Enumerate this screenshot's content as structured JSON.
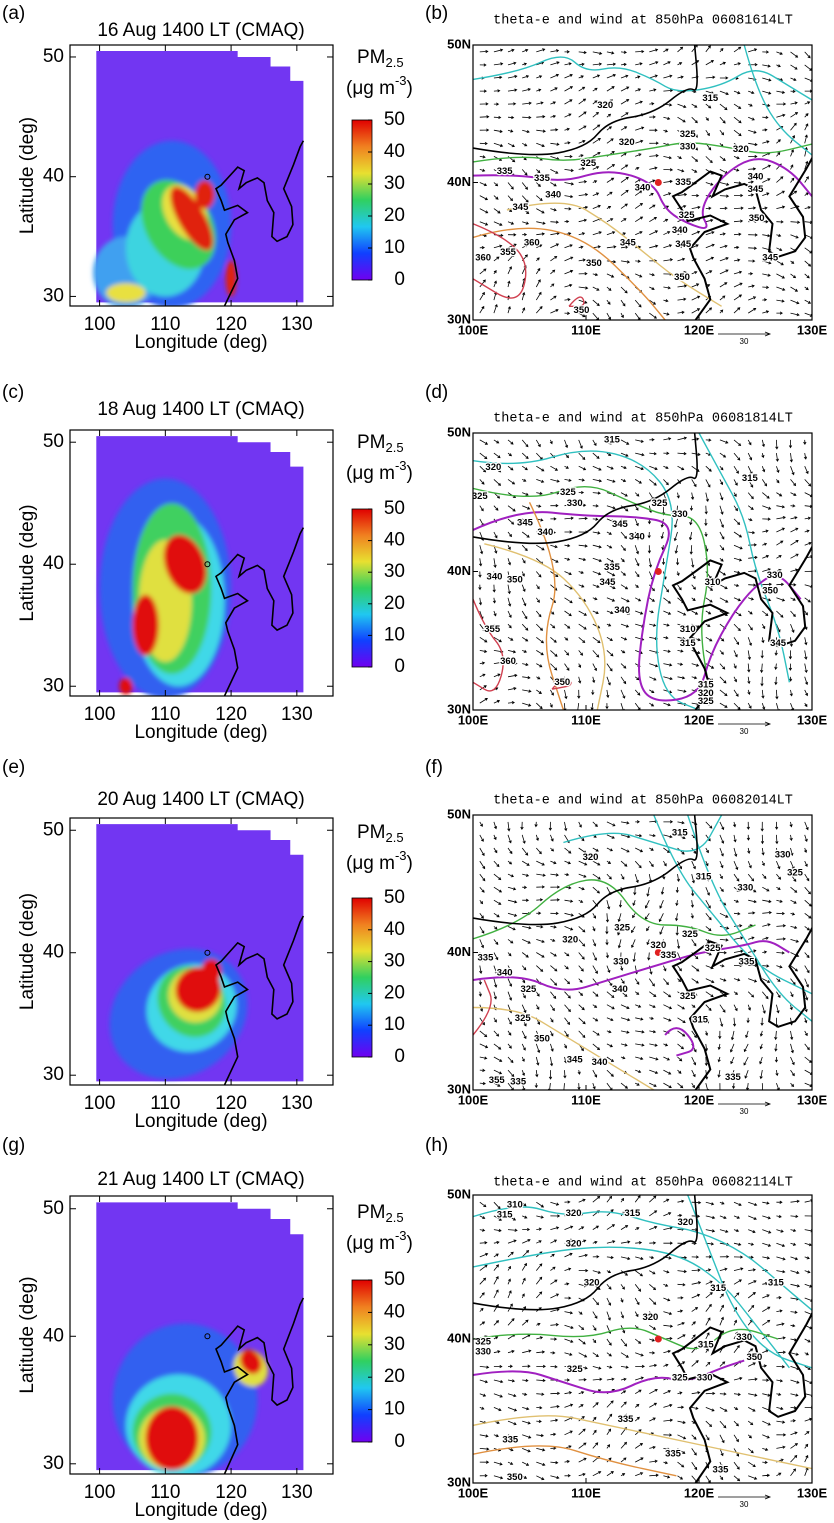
{
  "panels": [
    {
      "label": "(a)",
      "title": "16 Aug 1400 LT (CMAQ)",
      "xlabel": "Longitude (deg)",
      "ylabel": "Latitude (deg)",
      "xlim": [
        95.5,
        135.5
      ],
      "ylim": [
        29.2,
        51
      ],
      "xticks": [
        100,
        110,
        120,
        130
      ],
      "yticks": [
        30,
        40,
        50
      ],
      "colorbar": {
        "label": "PM",
        "label_sub": "2.5",
        "unit": "(μg m",
        "unit_sup": "-3",
        "unit_end": ")",
        "lim": [
          0,
          50
        ],
        "ticks": [
          0,
          10,
          20,
          30,
          40,
          50
        ],
        "colormap": [
          "#7000f0",
          "#1040ff",
          "#20c8f0",
          "#30d060",
          "#e8e030",
          "#f08020",
          "#e00000"
        ]
      }
    },
    {
      "label": "(b)",
      "title": "theta-e and wind at 850hPa 06081614LT",
      "xlim": [
        100,
        130
      ],
      "ylim": [
        30,
        50
      ],
      "xticks": [
        {
          "value": 100,
          "label": "100E"
        },
        {
          "value": 110,
          "label": "110E"
        },
        {
          "value": 120,
          "label": "120E"
        },
        {
          "value": 130,
          "label": "130E"
        }
      ],
      "yticks": [
        {
          "value": 30,
          "label": "30N"
        },
        {
          "value": 40,
          "label": "40N"
        },
        {
          "value": 50,
          "label": "50N"
        }
      ],
      "reference_vector": "30",
      "contour_labels": [
        "320",
        "315",
        "320",
        "325",
        "330",
        "320",
        "325",
        "335",
        "335",
        "340",
        "340",
        "335",
        "340",
        "345",
        "345",
        "325",
        "340",
        "345",
        "345",
        "350",
        "345",
        "360",
        "360",
        "355",
        "350",
        "350",
        "350"
      ]
    },
    {
      "label": "(c)",
      "title": "18 Aug 1400 LT (CMAQ)",
      "xlabel": "Longitude (deg)",
      "ylabel": "Latitude (deg)",
      "xlim": [
        95.5,
        135.5
      ],
      "ylim": [
        29.2,
        51
      ],
      "xticks": [
        100,
        110,
        120,
        130
      ],
      "yticks": [
        30,
        40,
        50
      ],
      "colorbar": {
        "label": "PM",
        "label_sub": "2.5",
        "unit": "(μg m",
        "unit_sup": "-3",
        "unit_end": ")",
        "lim": [
          0,
          50
        ],
        "ticks": [
          0,
          10,
          20,
          30,
          40,
          50
        ],
        "colormap": [
          "#7000f0",
          "#1040ff",
          "#20c8f0",
          "#30d060",
          "#e8e030",
          "#f08020",
          "#e00000"
        ]
      }
    },
    {
      "label": "(d)",
      "title": "theta-e and wind at 850hPa 06081814LT",
      "xlim": [
        100,
        130
      ],
      "ylim": [
        30,
        50
      ],
      "xticks": [
        {
          "value": 100,
          "label": "100E"
        },
        {
          "value": 110,
          "label": "110E"
        },
        {
          "value": 120,
          "label": "120E"
        },
        {
          "value": 130,
          "label": "130E"
        }
      ],
      "yticks": [
        {
          "value": 30,
          "label": "30N"
        },
        {
          "value": 40,
          "label": "40N"
        },
        {
          "value": 50,
          "label": "50N"
        }
      ],
      "reference_vector": "30",
      "contour_labels": [
        "315",
        "320",
        "315",
        "325",
        "325",
        "325",
        "330",
        "330",
        "345",
        "340",
        "345",
        "340",
        "335",
        "340",
        "350",
        "345",
        "310",
        "340",
        "330",
        "350",
        "310",
        "315",
        "355",
        "345",
        "360",
        "350",
        "315",
        "320",
        "325"
      ]
    },
    {
      "label": "(e)",
      "title": "20 Aug 1400 LT (CMAQ)",
      "xlabel": "Longitude (deg)",
      "ylabel": "Latitude (deg)",
      "xlim": [
        95.5,
        135.5
      ],
      "ylim": [
        29.2,
        51
      ],
      "xticks": [
        100,
        110,
        120,
        130
      ],
      "yticks": [
        30,
        40,
        50
      ],
      "colorbar": {
        "label": "PM",
        "label_sub": "2.5",
        "unit": "(μg m",
        "unit_sup": "-3",
        "unit_end": ")",
        "lim": [
          0,
          50
        ],
        "ticks": [
          0,
          10,
          20,
          30,
          40,
          50
        ],
        "colormap": [
          "#7000f0",
          "#1040ff",
          "#20c8f0",
          "#30d060",
          "#e8e030",
          "#f08020",
          "#e00000"
        ]
      }
    },
    {
      "label": "(f)",
      "title": "theta-e and wind at 850hPa 06082014LT",
      "xlim": [
        100,
        130
      ],
      "ylim": [
        30,
        50
      ],
      "xticks": [
        {
          "value": 100,
          "label": "100E"
        },
        {
          "value": 110,
          "label": "110E"
        },
        {
          "value": 120,
          "label": "120E"
        },
        {
          "value": 130,
          "label": "130E"
        }
      ],
      "yticks": [
        {
          "value": 30,
          "label": "30N"
        },
        {
          "value": 40,
          "label": "40N"
        },
        {
          "value": 50,
          "label": "50N"
        }
      ],
      "reference_vector": "30",
      "contour_labels": [
        "315",
        "320",
        "330",
        "325",
        "315",
        "330",
        "320",
        "325",
        "320",
        "325",
        "325",
        "335",
        "330",
        "335",
        "335",
        "340",
        "325",
        "340",
        "325",
        "325",
        "350",
        "315",
        "345",
        "340",
        "355",
        "335",
        "335"
      ]
    },
    {
      "label": "(g)",
      "title": "21 Aug 1400 LT (CMAQ)",
      "xlabel": "Longitude (deg)",
      "ylabel": "Latitude (deg)",
      "xlim": [
        95.5,
        135.5
      ],
      "ylim": [
        29.2,
        51
      ],
      "xticks": [
        100,
        110,
        120,
        130
      ],
      "yticks": [
        30,
        40,
        50
      ],
      "colorbar": {
        "label": "PM",
        "label_sub": "2.5",
        "unit": "(μg m",
        "unit_sup": "-3",
        "unit_end": ")",
        "lim": [
          0,
          50
        ],
        "ticks": [
          0,
          10,
          20,
          30,
          40,
          50
        ],
        "colormap": [
          "#7000f0",
          "#1040ff",
          "#20c8f0",
          "#30d060",
          "#e8e030",
          "#f08020",
          "#e00000"
        ]
      }
    },
    {
      "label": "(h)",
      "title": "theta-e and wind at 850hPa 06082114LT",
      "xlim": [
        100,
        130
      ],
      "ylim": [
        30,
        50
      ],
      "xticks": [
        {
          "value": 100,
          "label": "100E"
        },
        {
          "value": 110,
          "label": "110E"
        },
        {
          "value": 120,
          "label": "120E"
        },
        {
          "value": 130,
          "label": "130E"
        }
      ],
      "yticks": [
        {
          "value": 30,
          "label": "30N"
        },
        {
          "value": 40,
          "label": "40N"
        },
        {
          "value": 50,
          "label": "50N"
        }
      ],
      "reference_vector": "30",
      "contour_labels": [
        "310",
        "315",
        "320",
        "315",
        "320",
        "320",
        "315",
        "315",
        "320",
        "320",
        "325",
        "330",
        "315",
        "330",
        "350",
        "325",
        "325",
        "330",
        "335",
        "335",
        "335",
        "335",
        "350"
      ]
    }
  ]
}
